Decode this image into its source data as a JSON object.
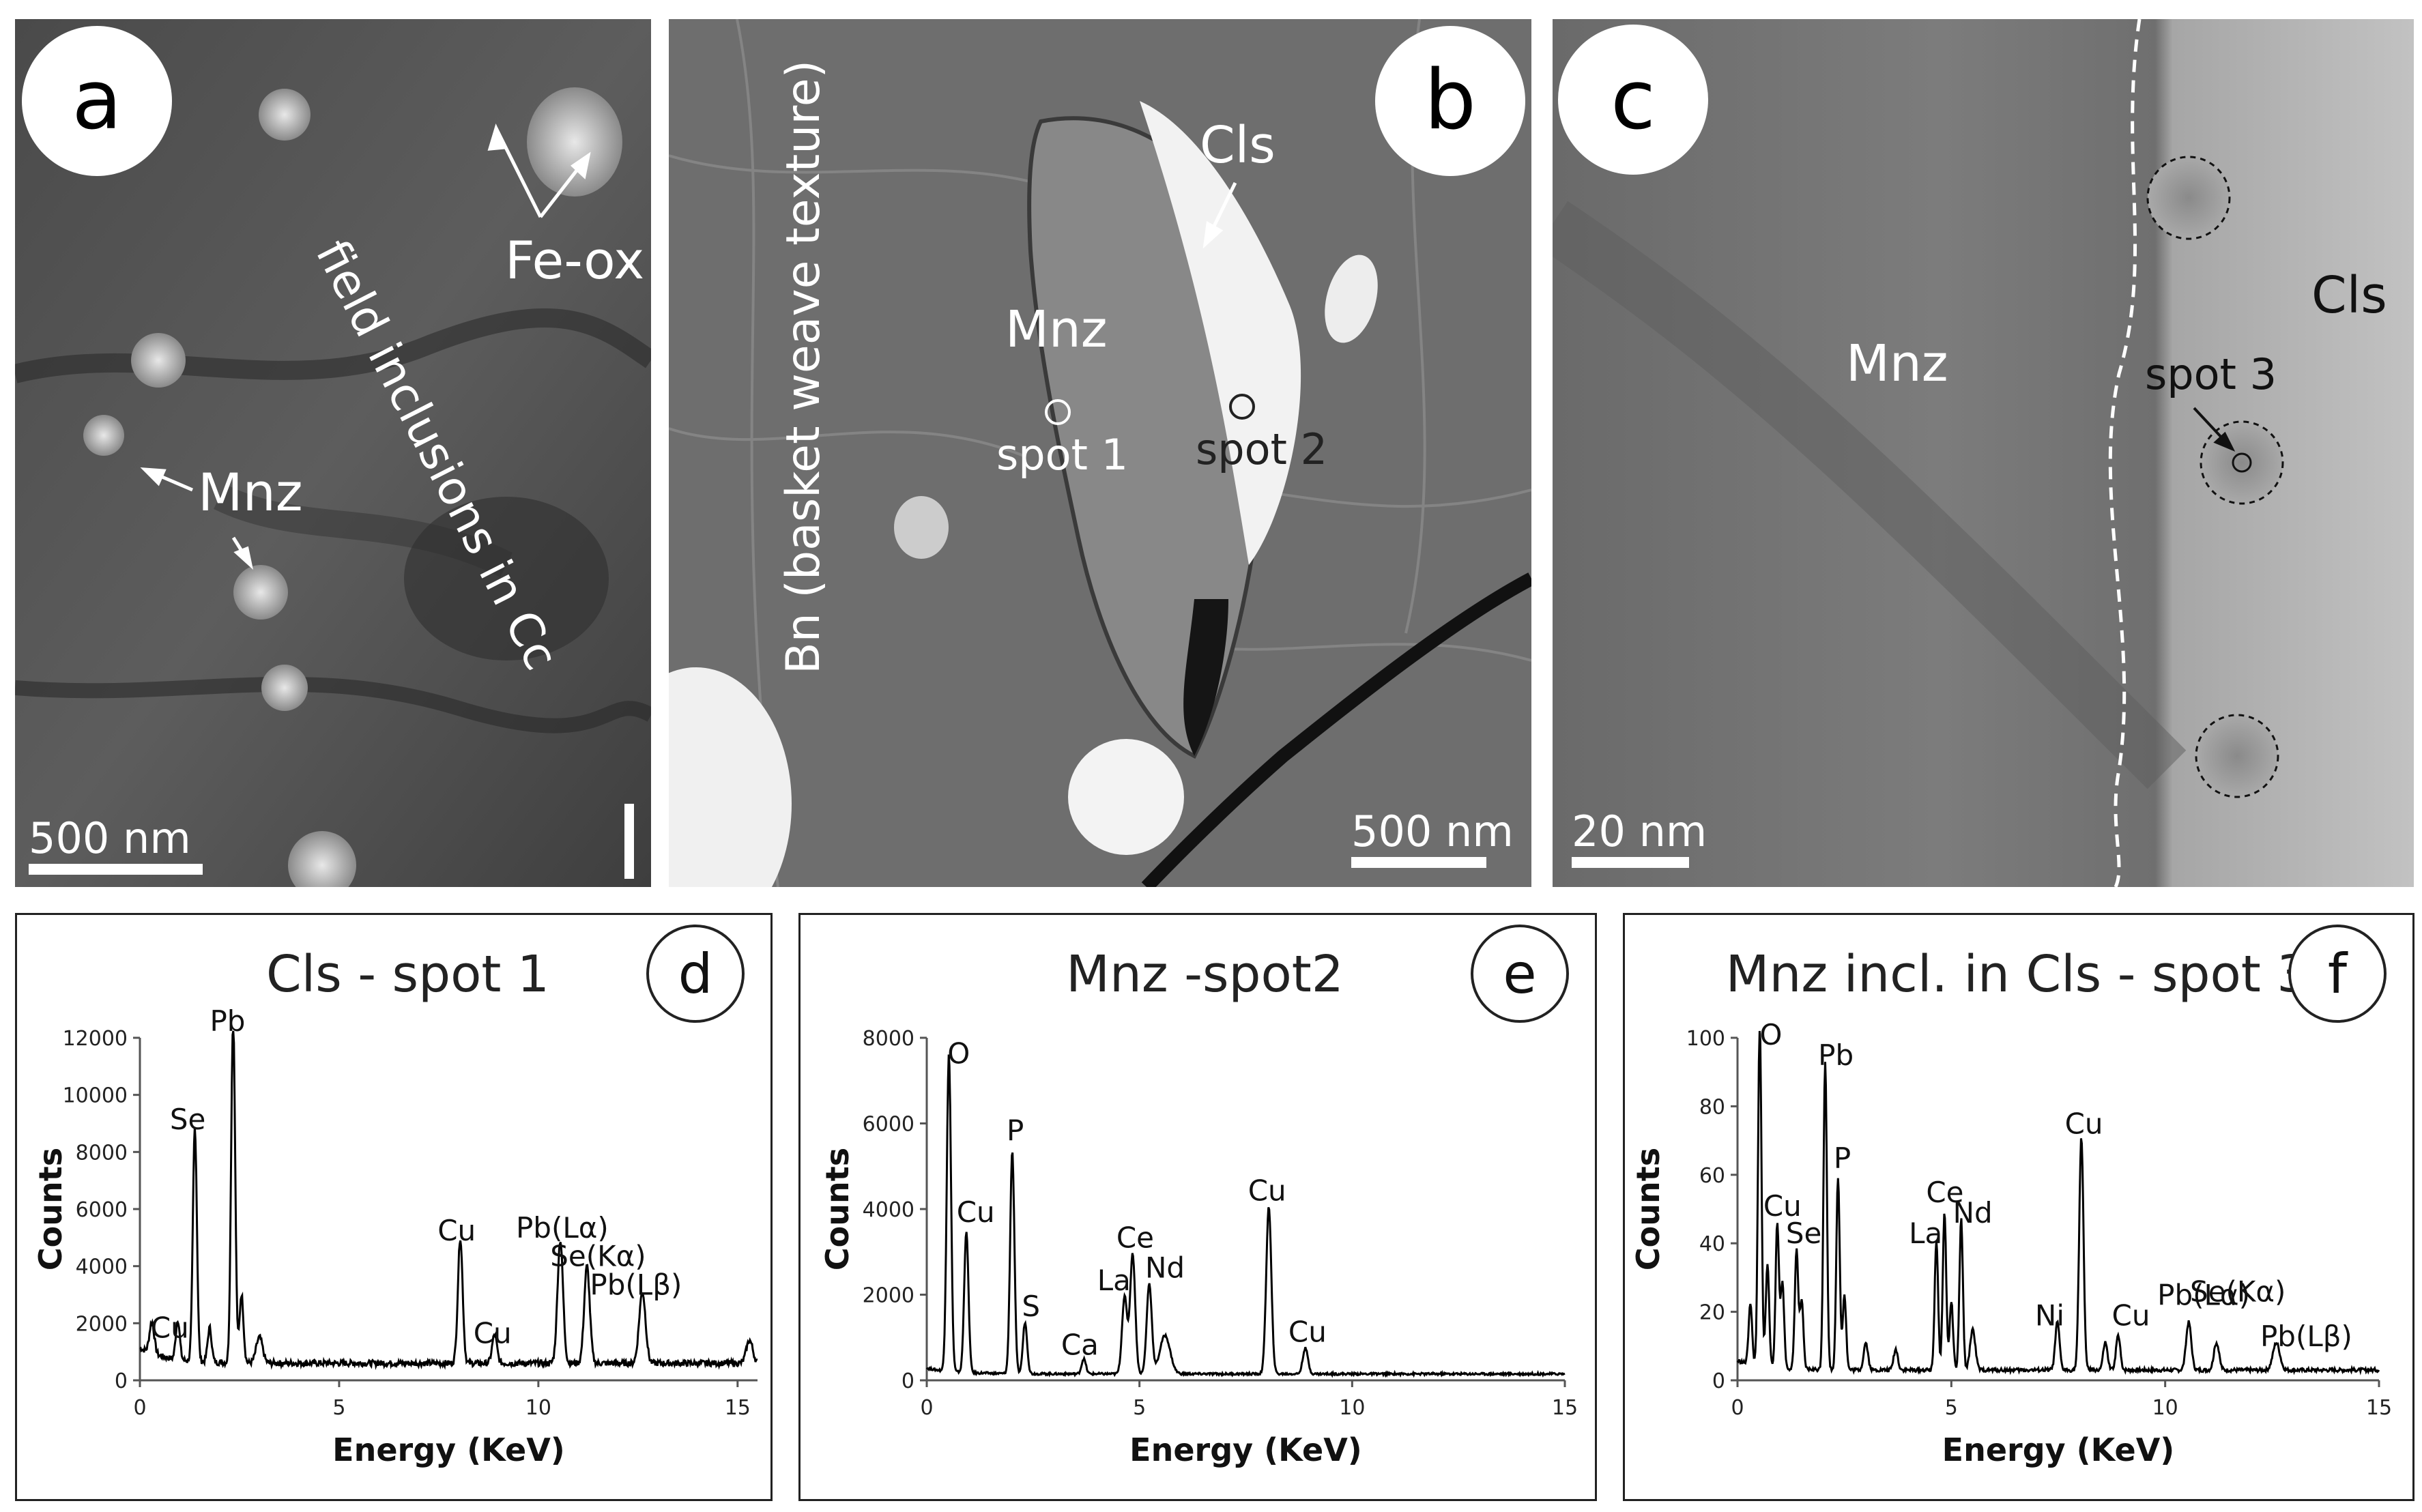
{
  "colors": {
    "scale_bar": "#ffffff",
    "plot_line": "#000000",
    "badge_fill": "#ffffff"
  },
  "panel_a": {
    "label": "a",
    "fe_ox": "Fe-ox",
    "mnz": "Mnz",
    "field": "field inclusions in Cc",
    "scale": "500 nm"
  },
  "panel_b": {
    "label": "b",
    "cls": "Cls",
    "mnz": "Mnz",
    "spot1": "spot 1",
    "spot2": "spot 2",
    "bn": "Bn (basket weave texture)",
    "scale": "500 nm"
  },
  "panel_c": {
    "label": "c",
    "mnz": "Mnz",
    "cls": "Cls",
    "spot3": "spot 3",
    "scale": "20 nm"
  },
  "chart_data": [
    {
      "type": "line",
      "panel_label": "d",
      "title": "Cls - spot 1",
      "xlabel": "Energy (KeV)",
      "ylabel": "Counts",
      "xlim": [
        0,
        15.5
      ],
      "ylim": [
        0,
        12000
      ],
      "xticks": [
        0,
        5,
        10,
        15
      ],
      "yticks": [
        0,
        2000,
        4000,
        6000,
        8000,
        10000,
        12000
      ],
      "baseline": 600,
      "peaks": [
        {
          "x": 0.3,
          "y": 1100,
          "w": 0.06
        },
        {
          "x": 0.95,
          "y": 1400,
          "w": 0.05
        },
        {
          "x": 1.38,
          "y": 8200,
          "w": 0.05
        },
        {
          "x": 1.75,
          "y": 1200,
          "w": 0.05
        },
        {
          "x": 2.34,
          "y": 12100,
          "w": 0.05
        },
        {
          "x": 2.55,
          "y": 2400,
          "w": 0.05
        },
        {
          "x": 3.0,
          "y": 900,
          "w": 0.08
        },
        {
          "x": 8.04,
          "y": 4400,
          "w": 0.06
        },
        {
          "x": 8.9,
          "y": 1000,
          "w": 0.06
        },
        {
          "x": 10.55,
          "y": 4300,
          "w": 0.07
        },
        {
          "x": 11.22,
          "y": 3400,
          "w": 0.07
        },
        {
          "x": 12.61,
          "y": 2500,
          "w": 0.08
        },
        {
          "x": 15.3,
          "y": 800,
          "w": 0.08
        }
      ],
      "labels": [
        {
          "text": "Cu",
          "x": 0.75,
          "y": 1500
        },
        {
          "text": "Se",
          "x": 1.2,
          "y": 8800
        },
        {
          "text": "Pb",
          "x": 2.2,
          "y": 12500
        },
        {
          "text": "Cu",
          "x": 7.95,
          "y": 4900
        },
        {
          "text": "Cu",
          "x": 8.85,
          "y": 1300
        },
        {
          "text": "Pb(Lα)",
          "x": 10.6,
          "y": 5000
        },
        {
          "text": "Se(Kα)",
          "x": 11.5,
          "y": 4000
        },
        {
          "text": "Pb(Lβ)",
          "x": 12.45,
          "y": 3000
        }
      ]
    },
    {
      "type": "line",
      "panel_label": "e",
      "title": "Mnz -spot2",
      "xlabel": "Energy (KeV)",
      "ylabel": "Counts",
      "xlim": [
        0,
        15
      ],
      "ylim": [
        0,
        8000
      ],
      "xticks": [
        0,
        5,
        10,
        15
      ],
      "yticks": [
        0,
        2000,
        4000,
        6000,
        8000
      ],
      "baseline": 150,
      "peaks": [
        {
          "x": 0.52,
          "y": 7400,
          "w": 0.05
        },
        {
          "x": 0.93,
          "y": 3300,
          "w": 0.05
        },
        {
          "x": 2.01,
          "y": 5200,
          "w": 0.05
        },
        {
          "x": 2.31,
          "y": 1200,
          "w": 0.05
        },
        {
          "x": 3.69,
          "y": 350,
          "w": 0.05
        },
        {
          "x": 4.65,
          "y": 1800,
          "w": 0.06
        },
        {
          "x": 4.84,
          "y": 2800,
          "w": 0.06
        },
        {
          "x": 5.23,
          "y": 2100,
          "w": 0.06
        },
        {
          "x": 5.6,
          "y": 900,
          "w": 0.12
        },
        {
          "x": 8.04,
          "y": 3900,
          "w": 0.06
        },
        {
          "x": 8.9,
          "y": 600,
          "w": 0.06
        }
      ],
      "labels": [
        {
          "text": "O",
          "x": 0.75,
          "y": 7400
        },
        {
          "text": "P",
          "x": 2.08,
          "y": 5600
        },
        {
          "text": "Cu",
          "x": 1.15,
          "y": 3700
        },
        {
          "text": "S",
          "x": 2.45,
          "y": 1500
        },
        {
          "text": "Ca",
          "x": 3.6,
          "y": 600
        },
        {
          "text": "La",
          "x": 4.4,
          "y": 2100
        },
        {
          "text": "Ce",
          "x": 4.9,
          "y": 3100
        },
        {
          "text": "Nd",
          "x": 5.6,
          "y": 2400
        },
        {
          "text": "Cu",
          "x": 8.0,
          "y": 4200
        },
        {
          "text": "Cu",
          "x": 8.95,
          "y": 900
        }
      ]
    },
    {
      "type": "line",
      "panel_label": "f",
      "title": "Mnz incl. in Cls - spot 3",
      "xlabel": "Energy (KeV)",
      "ylabel": "Counts",
      "xlim": [
        0,
        15
      ],
      "ylim": [
        0,
        100
      ],
      "xticks": [
        0,
        5,
        10,
        15
      ],
      "yticks": [
        0,
        20,
        40,
        60,
        80,
        100
      ],
      "baseline": 3,
      "peaks": [
        {
          "x": 0.52,
          "y": 100,
          "w": 0.04
        },
        {
          "x": 0.3,
          "y": 18,
          "w": 0.04
        },
        {
          "x": 0.7,
          "y": 30,
          "w": 0.04
        },
        {
          "x": 0.93,
          "y": 42,
          "w": 0.04
        },
        {
          "x": 1.05,
          "y": 25,
          "w": 0.04
        },
        {
          "x": 1.38,
          "y": 35,
          "w": 0.04
        },
        {
          "x": 1.5,
          "y": 20,
          "w": 0.04
        },
        {
          "x": 2.05,
          "y": 90,
          "w": 0.04
        },
        {
          "x": 2.35,
          "y": 56,
          "w": 0.04
        },
        {
          "x": 2.5,
          "y": 22,
          "w": 0.04
        },
        {
          "x": 3.0,
          "y": 8,
          "w": 0.05
        },
        {
          "x": 3.7,
          "y": 6,
          "w": 0.05
        },
        {
          "x": 4.65,
          "y": 38,
          "w": 0.04
        },
        {
          "x": 4.84,
          "y": 46,
          "w": 0.04
        },
        {
          "x": 5.0,
          "y": 20,
          "w": 0.04
        },
        {
          "x": 5.23,
          "y": 44,
          "w": 0.04
        },
        {
          "x": 5.5,
          "y": 12,
          "w": 0.06
        },
        {
          "x": 7.48,
          "y": 14,
          "w": 0.05
        },
        {
          "x": 8.04,
          "y": 68,
          "w": 0.05
        },
        {
          "x": 8.6,
          "y": 8,
          "w": 0.05
        },
        {
          "x": 8.9,
          "y": 10,
          "w": 0.05
        },
        {
          "x": 10.55,
          "y": 14,
          "w": 0.06
        },
        {
          "x": 11.2,
          "y": 8,
          "w": 0.06
        },
        {
          "x": 12.6,
          "y": 8,
          "w": 0.08
        }
      ],
      "labels": [
        {
          "text": "O",
          "x": 0.78,
          "y": 98
        },
        {
          "text": "Pb",
          "x": 2.3,
          "y": 92
        },
        {
          "text": "P",
          "x": 2.45,
          "y": 62
        },
        {
          "text": "Cu",
          "x": 1.05,
          "y": 48
        },
        {
          "text": "Se",
          "x": 1.55,
          "y": 40
        },
        {
          "text": "Ce",
          "x": 4.85,
          "y": 52
        },
        {
          "text": "La",
          "x": 4.4,
          "y": 40
        },
        {
          "text": "Nd",
          "x": 5.5,
          "y": 46
        },
        {
          "text": "Cu",
          "x": 8.1,
          "y": 72
        },
        {
          "text": "Ni",
          "x": 7.3,
          "y": 16
        },
        {
          "text": "Cu",
          "x": 9.2,
          "y": 16
        },
        {
          "text": "Pb(Lα)",
          "x": 10.9,
          "y": 22
        },
        {
          "text": "Se(Kα)",
          "x": 11.7,
          "y": 23
        },
        {
          "text": "Pb(Lβ)",
          "x": 13.3,
          "y": 10
        }
      ]
    }
  ]
}
